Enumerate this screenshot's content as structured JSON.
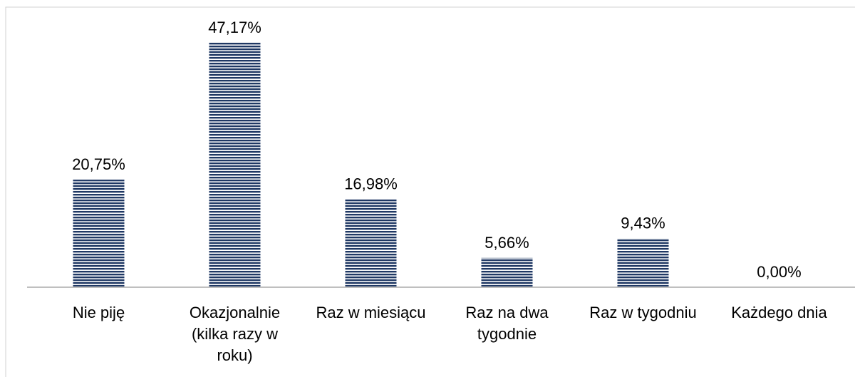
{
  "chart_data": {
    "type": "bar",
    "categories": [
      "Nie piję",
      "Okazjonalnie (kilka razy w roku)",
      "Raz w miesiącu",
      "Raz na dwa tygodnie",
      "Raz w tygodniu",
      "Każdego dnia"
    ],
    "values": [
      20.75,
      47.17,
      16.98,
      5.66,
      9.43,
      0.0
    ],
    "value_labels": [
      "20,75%",
      "47,17%",
      "16,98%",
      "5,66%",
      "9,43%",
      "0,00%"
    ],
    "color": "#1f3864"
  }
}
